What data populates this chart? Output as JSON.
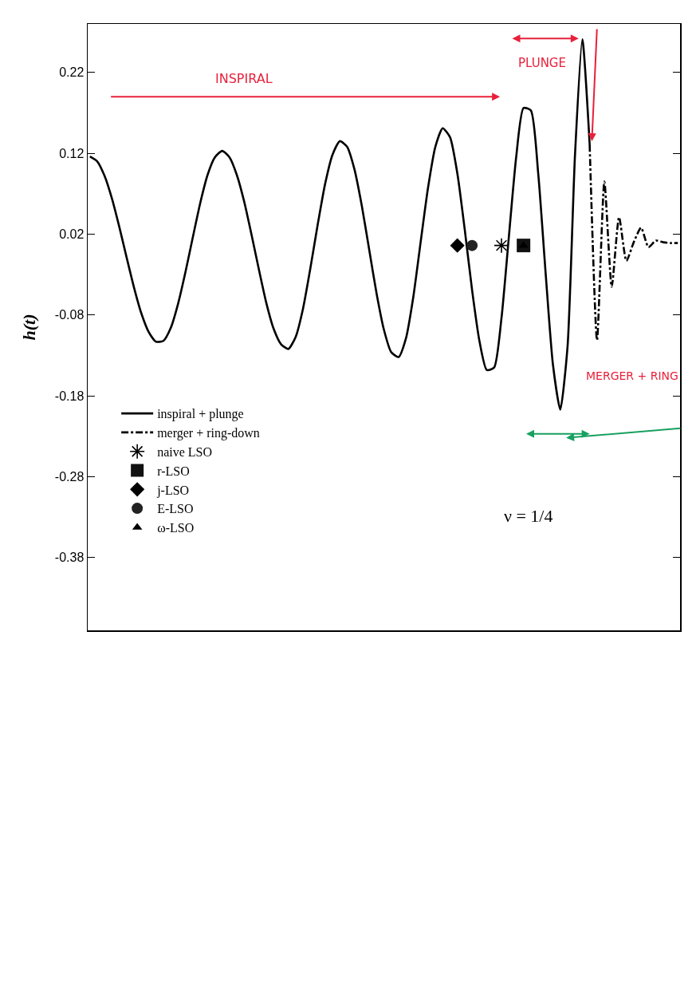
{
  "chart_data": {
    "type": "line",
    "ylabel": "h(t)",
    "categories": [
      null,
      null,
      null,
      null,
      null,
      null,
      null,
      null,
      null,
      null,
      null,
      null,
      null,
      null,
      null,
      null,
      null,
      null,
      null,
      null,
      null,
      null,
      null,
      null,
      null,
      null,
      null,
      null,
      null,
      null,
      null,
      null,
      null,
      null,
      null,
      null,
      null,
      null,
      null,
      null,
      null,
      null,
      null,
      null,
      null,
      null,
      null,
      null,
      null,
      null,
      null,
      null,
      null,
      null,
      null,
      null,
      null,
      null,
      null,
      null,
      null,
      null,
      null,
      null,
      null,
      null,
      null,
      null,
      null,
      null,
      null,
      null,
      null,
      null,
      null,
      null,
      null,
      null,
      null,
      null,
      null
    ],
    "ylim": [
      -0.47,
      0.28
    ],
    "yticks": [
      0.22,
      0.12,
      0.02,
      -0.08,
      -0.18,
      -0.28,
      -0.38
    ],
    "grid": false,
    "legend": "bottom left",
    "series": [
      {
        "name": "inspiral + plunge",
        "color": "#000000",
        "line_style": "solid",
        "values": [
          0.116,
          0.11,
          0.092,
          0.064,
          0.029,
          -0.009,
          -0.046,
          -0.078,
          -0.101,
          -0.113,
          -0.112,
          -0.096,
          -0.066,
          -0.027,
          0.016,
          0.058,
          0.093,
          0.115,
          0.123,
          0.115,
          0.093,
          0.06,
          0.019,
          -0.024,
          -0.065,
          -0.097,
          -0.116,
          -0.122,
          -0.107,
          -0.072,
          -0.022,
          0.032,
          0.082,
          0.118,
          0.135,
          0.128,
          0.1,
          0.055,
          0.001,
          -0.053,
          -0.098,
          -0.126,
          -0.132,
          -0.109,
          -0.058,
          0.01,
          0.077,
          0.128,
          0.151,
          0.14,
          0.095,
          0.026,
          -0.049,
          -0.112,
          -0.148,
          -0.145,
          -0.084,
          0.016,
          0.115,
          0.176,
          0.173,
          0.095,
          -0.027,
          -0.141,
          -0.197,
          -0.118,
          0.117,
          0.261,
          0.131,
          null,
          null,
          null,
          null,
          null,
          null,
          null,
          null,
          null,
          null,
          null,
          null
        ]
      },
      {
        "name": "merger + ring-down",
        "color": "#000000",
        "line_style": "dashed",
        "values": [
          null,
          null,
          null,
          null,
          null,
          null,
          null,
          null,
          null,
          null,
          null,
          null,
          null,
          null,
          null,
          null,
          null,
          null,
          null,
          null,
          null,
          null,
          null,
          null,
          null,
          null,
          null,
          null,
          null,
          null,
          null,
          null,
          null,
          null,
          null,
          null,
          null,
          null,
          null,
          null,
          null,
          null,
          null,
          null,
          null,
          null,
          null,
          null,
          null,
          null,
          null,
          null,
          null,
          null,
          null,
          null,
          null,
          null,
          null,
          null,
          null,
          null,
          null,
          null,
          null,
          null,
          null,
          null,
          0.131,
          -0.111,
          0.085,
          -0.045,
          0.041,
          -0.013,
          0.01,
          0.028,
          0.004,
          0.012,
          0.01,
          0.009,
          0.009
        ]
      },
      {
        "name": "naive LSO",
        "color": "#000000",
        "type": "scatter",
        "marker": "cross",
        "values": [
          null,
          null,
          null,
          null,
          null,
          null,
          null,
          null,
          null,
          null,
          null,
          null,
          null,
          null,
          null,
          null,
          null,
          null,
          null,
          null,
          null,
          null,
          null,
          null,
          null,
          null,
          null,
          null,
          null,
          null,
          null,
          null,
          null,
          null,
          null,
          null,
          null,
          null,
          null,
          null,
          null,
          null,
          null,
          null,
          null,
          null,
          null,
          null,
          null,
          null,
          null,
          null,
          null,
          null,
          null,
          null,
          0.006,
          null,
          null,
          null,
          null,
          null,
          null,
          null,
          null,
          null,
          null,
          null,
          null,
          null,
          null,
          null,
          null,
          null,
          null,
          null,
          null,
          null,
          null,
          null,
          null
        ]
      },
      {
        "name": "r-LSO",
        "color": "#111111",
        "type": "scatter",
        "marker": "square",
        "values": [
          null,
          null,
          null,
          null,
          null,
          null,
          null,
          null,
          null,
          null,
          null,
          null,
          null,
          null,
          null,
          null,
          null,
          null,
          null,
          null,
          null,
          null,
          null,
          null,
          null,
          null,
          null,
          null,
          null,
          null,
          null,
          null,
          null,
          null,
          null,
          null,
          null,
          null,
          null,
          null,
          null,
          null,
          null,
          null,
          null,
          null,
          null,
          null,
          null,
          null,
          null,
          null,
          null,
          null,
          null,
          null,
          null,
          null,
          null,
          0.006,
          null,
          null,
          null,
          null,
          null,
          null,
          null,
          null,
          null,
          null,
          null,
          null,
          null,
          null,
          null,
          null,
          null,
          null,
          null,
          null,
          null
        ]
      },
      {
        "name": "j-LSO",
        "color": "#000000",
        "type": "scatter",
        "marker": "diamond",
        "values": [
          null,
          null,
          null,
          null,
          null,
          null,
          null,
          null,
          null,
          null,
          null,
          null,
          null,
          null,
          null,
          null,
          null,
          null,
          null,
          null,
          null,
          null,
          null,
          null,
          null,
          null,
          null,
          null,
          null,
          null,
          null,
          null,
          null,
          null,
          null,
          null,
          null,
          null,
          null,
          null,
          null,
          null,
          null,
          null,
          null,
          null,
          null,
          null,
          null,
          null,
          0.006,
          null,
          null,
          null,
          null,
          null,
          null,
          null,
          null,
          null,
          null,
          null,
          null,
          null,
          null,
          null,
          null,
          null,
          null,
          null,
          null,
          null,
          null,
          null,
          null,
          null,
          null,
          null,
          null,
          null,
          null
        ]
      },
      {
        "name": "E-LSO",
        "color": "#222222",
        "type": "scatter",
        "marker": "circle",
        "values": [
          null,
          null,
          null,
          null,
          null,
          null,
          null,
          null,
          null,
          null,
          null,
          null,
          null,
          null,
          null,
          null,
          null,
          null,
          null,
          null,
          null,
          null,
          null,
          null,
          null,
          null,
          null,
          null,
          null,
          null,
          null,
          null,
          null,
          null,
          null,
          null,
          null,
          null,
          null,
          null,
          null,
          null,
          null,
          null,
          null,
          null,
          null,
          null,
          null,
          null,
          null,
          null,
          0.006,
          null,
          null,
          null,
          null,
          null,
          null,
          null,
          null,
          null,
          null,
          null,
          null,
          null,
          null,
          null,
          null,
          null,
          null,
          null,
          null,
          null,
          null,
          null,
          null,
          null,
          null,
          null,
          null
        ]
      },
      {
        "name": "ω-LSO",
        "color": "#000000",
        "type": "scatter",
        "marker": "triangle",
        "values": [
          null,
          null,
          null,
          null,
          null,
          null,
          null,
          null,
          null,
          null,
          null,
          null,
          null,
          null,
          null,
          null,
          null,
          null,
          null,
          null,
          null,
          null,
          null,
          null,
          null,
          null,
          null,
          null,
          null,
          null,
          null,
          null,
          null,
          null,
          null,
          null,
          null,
          null,
          null,
          null,
          null,
          null,
          null,
          null,
          null,
          null,
          null,
          null,
          null,
          null,
          null,
          null,
          null,
          null,
          null,
          null,
          null,
          null,
          null,
          0.006,
          null,
          null,
          null,
          null,
          null,
          null,
          null,
          null,
          null,
          null,
          null,
          null,
          null,
          null,
          null,
          null,
          null,
          null,
          null,
          null,
          null
        ]
      }
    ],
    "annotations": [
      "ν = 1/4",
      "INSPIRAL",
      "PLUNGE",
      "MERGER + RING"
    ]
  }
}
